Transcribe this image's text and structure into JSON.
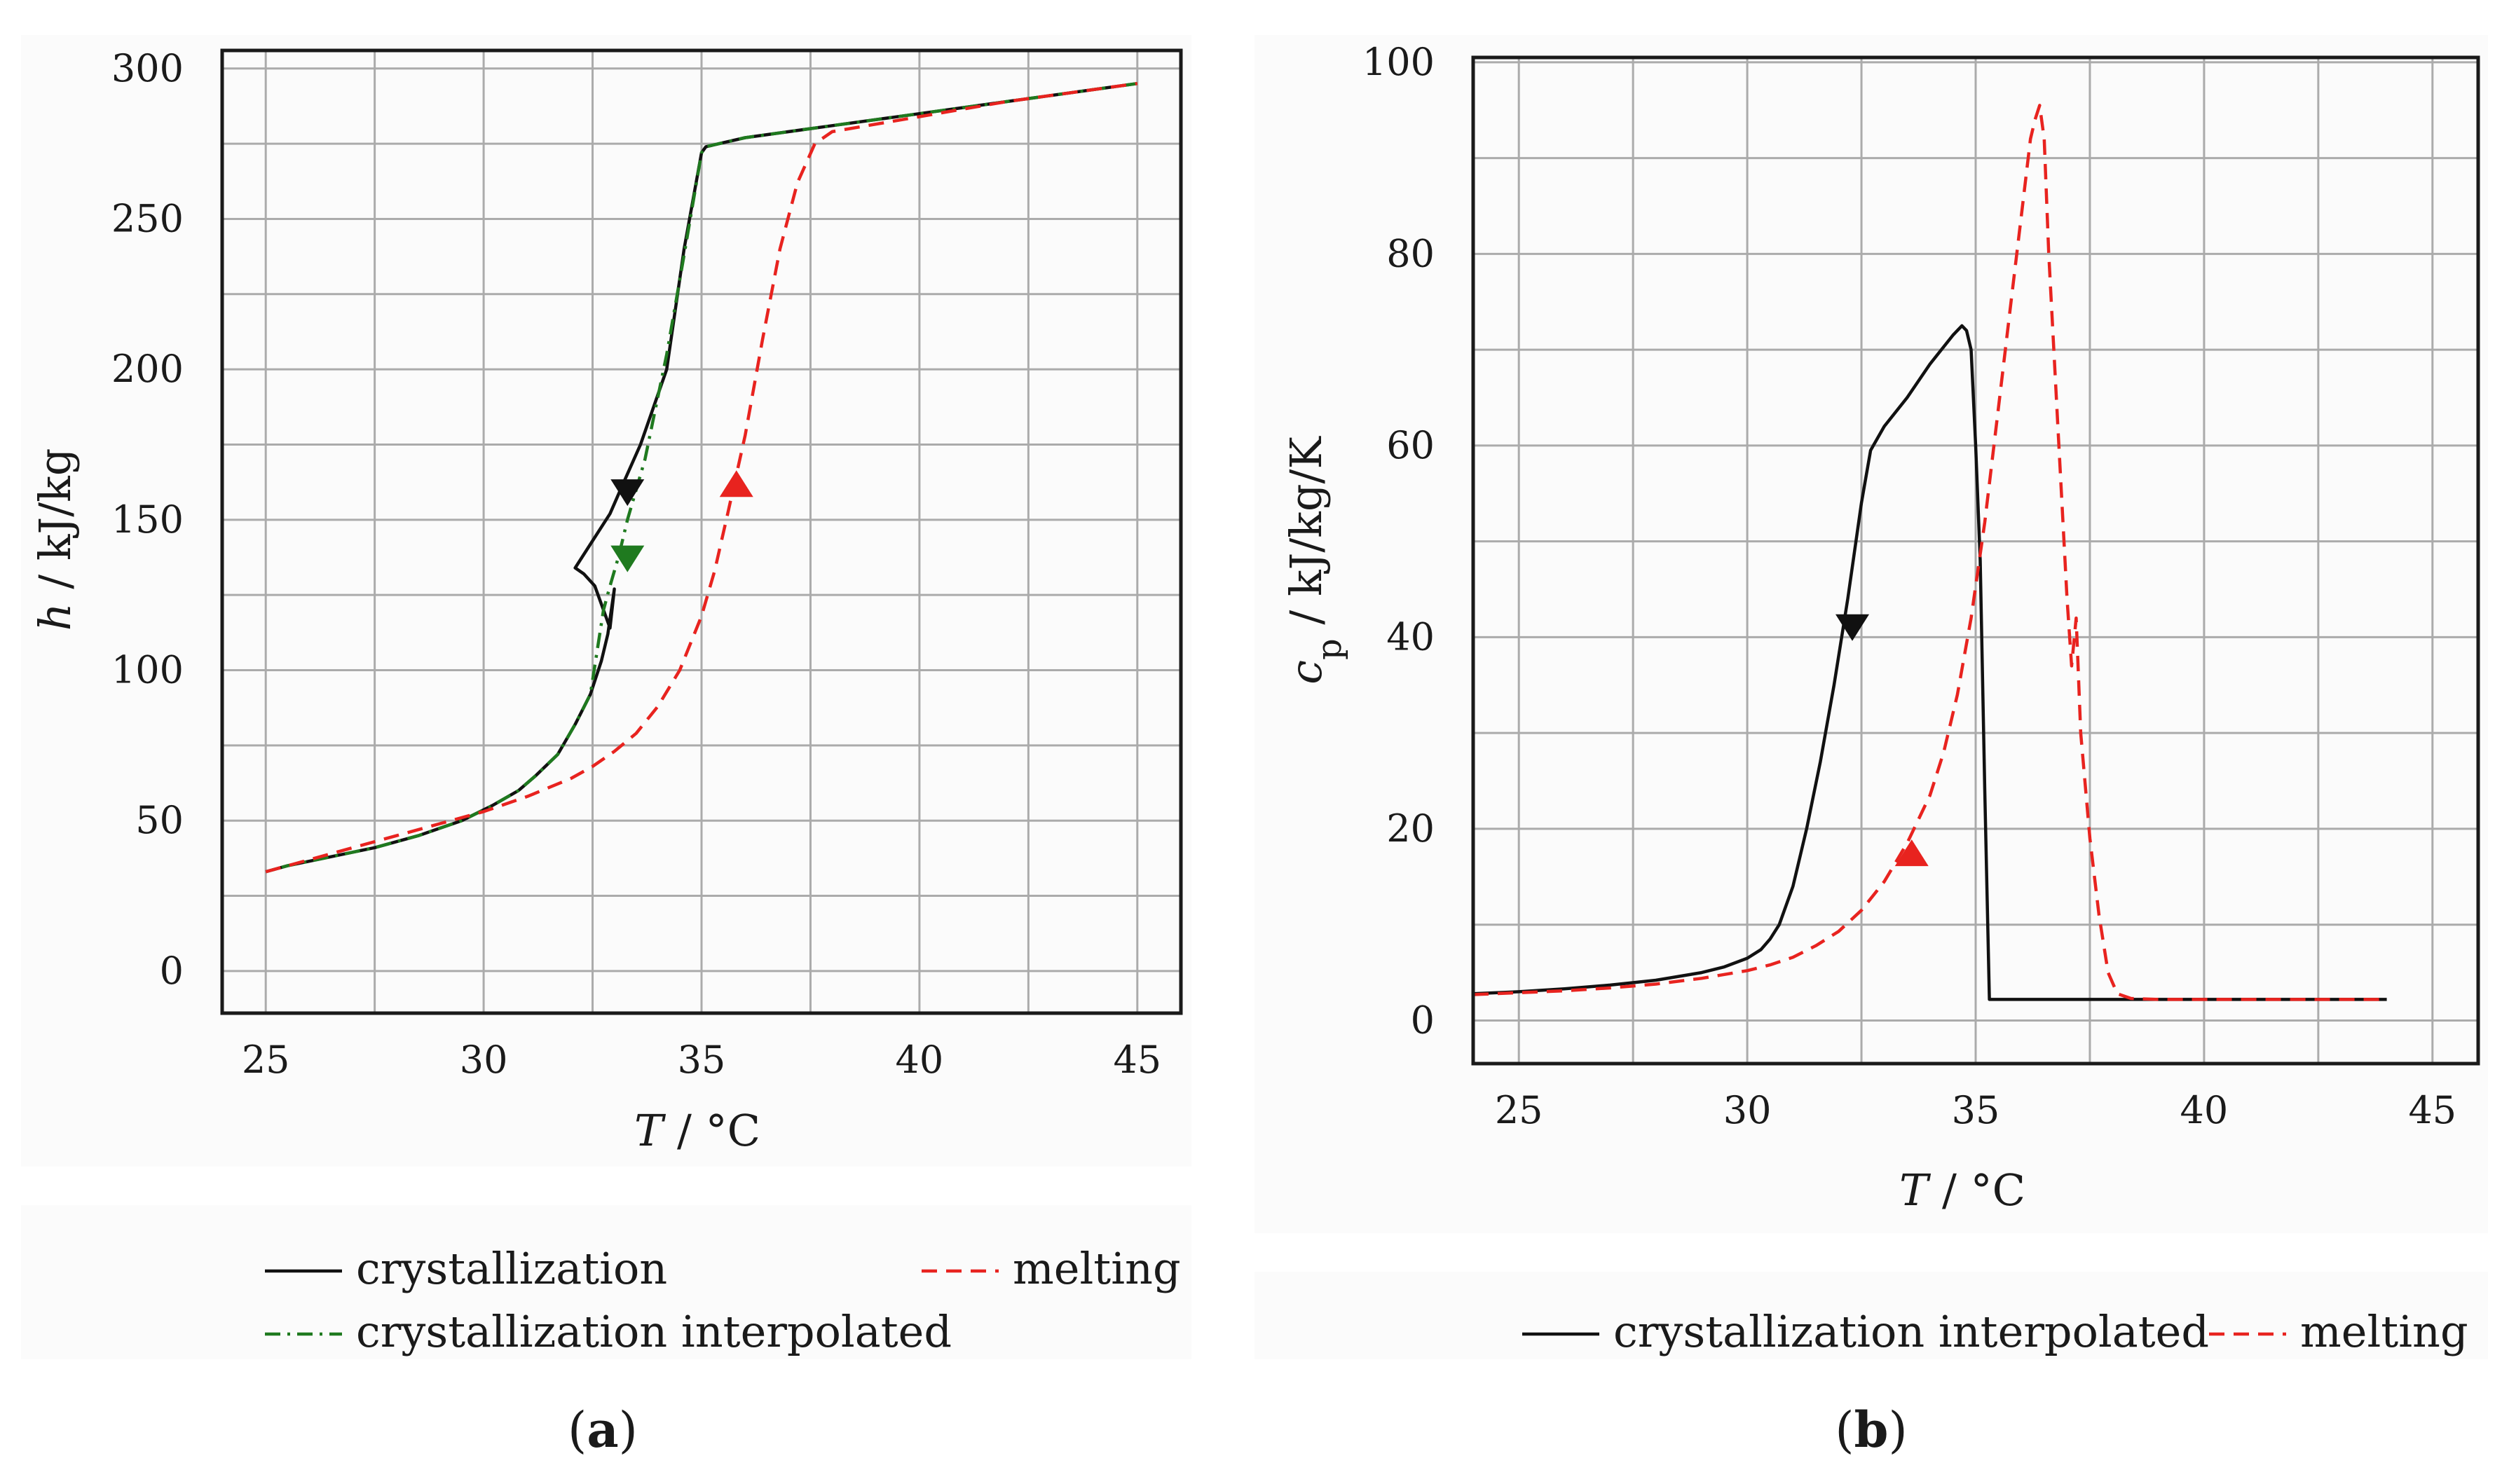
{
  "figure": {
    "panel_a_label": "a",
    "panel_b_label": "b",
    "paren_open": "(",
    "paren_close": ")"
  },
  "chart_data": [
    {
      "type": "line",
      "id": "a",
      "title": "",
      "xlabel_var": "T",
      "xlabel_unit": " / °C",
      "ylabel_var": "h",
      "ylabel_unit": " / kJ/kg",
      "xlim": [
        24,
        46
      ],
      "ylim": [
        -14,
        306
      ],
      "xticks": [
        25,
        30,
        35,
        40,
        45
      ],
      "yticks": [
        0,
        50,
        100,
        150,
        200,
        250,
        300
      ],
      "xgrid": [
        25,
        27.5,
        30,
        32.5,
        35,
        37.5,
        40,
        42.5,
        45
      ],
      "ygrid": [
        0,
        25,
        50,
        75,
        100,
        125,
        150,
        175,
        200,
        225,
        250,
        275,
        300
      ],
      "grid": true,
      "legend_position": "bottom",
      "series": [
        {
          "name": "crystallization",
          "color": "#111111",
          "dash": "solid",
          "x": [
            45,
            42,
            40,
            38,
            36,
            35.4,
            35.1,
            35.0,
            34.6,
            34.2,
            33.6,
            33.2,
            32.9,
            32.5,
            32.1,
            32.3,
            32.55,
            32.75,
            32.9,
            33.0,
            32.85,
            32.7,
            32.45,
            32.1,
            31.7,
            31.2,
            30.8,
            30.2,
            29.5,
            28.5,
            27.5,
            26.5,
            25.5,
            25
          ],
          "y": [
            295,
            289,
            285,
            281,
            277,
            275,
            274,
            272,
            240,
            200,
            175,
            162,
            152,
            143,
            134,
            132,
            128,
            120,
            114,
            127,
            112,
            103,
            92,
            82,
            72,
            65,
            60,
            55,
            50,
            45,
            41,
            38,
            35,
            33
          ]
        },
        {
          "name": "crystallization interpolated",
          "color": "#1f7a1f",
          "dash": "dashdot",
          "x": [
            45,
            42,
            40,
            38,
            36,
            35.4,
            35.1,
            35.0,
            34.6,
            34.2,
            33.7,
            33.3,
            33.1,
            32.9,
            32.75,
            32.45,
            32.1,
            31.7,
            31.2,
            30.8,
            30.2,
            29.5,
            28.5,
            27.5,
            26.5,
            25.5,
            25
          ],
          "y": [
            295,
            289,
            285,
            281,
            277,
            275,
            274,
            272,
            238,
            205,
            170,
            150,
            138,
            128,
            120,
            92,
            82,
            72,
            65,
            60,
            55,
            50,
            45,
            41,
            38,
            35,
            33
          ]
        },
        {
          "name": "melting",
          "color": "#e8231f",
          "dash": "dashed",
          "x": [
            25,
            26,
            27,
            28,
            29,
            30,
            31,
            32,
            32.5,
            33,
            33.5,
            34,
            34.5,
            35,
            35.3,
            35.6,
            36,
            36.4,
            36.8,
            37.2,
            37.6,
            38,
            40,
            42,
            45
          ],
          "y": [
            33,
            37,
            41,
            45,
            49,
            53,
            58,
            64,
            68,
            73,
            79,
            88,
            100,
            118,
            133,
            152,
            178,
            210,
            240,
            262,
            275,
            279,
            284,
            289,
            295
          ]
        }
      ],
      "markers": [
        {
          "color": "#111111",
          "x": 33.3,
          "y": 159,
          "direction": "down"
        },
        {
          "color": "#1f7a1f",
          "x": 33.3,
          "y": 137,
          "direction": "down"
        },
        {
          "color": "#e8231f",
          "x": 35.8,
          "y": 162,
          "direction": "up"
        }
      ],
      "legend": [
        {
          "name": "crystallization",
          "color": "#111111",
          "dash": "solid"
        },
        {
          "name": "melting",
          "color": "#e8231f",
          "dash": "dashed"
        },
        {
          "name": "crystallization interpolated",
          "color": "#1f7a1f",
          "dash": "dashdot"
        }
      ]
    },
    {
      "type": "line",
      "id": "b",
      "title": "",
      "xlabel_var": "T",
      "xlabel_unit": " / °C",
      "ylabel_var": "c",
      "ylabel_sub": "p",
      "ylabel_unit": " / kJ/kg/K",
      "xlim": [
        24,
        46
      ],
      "ylim": [
        -4.5,
        100.5
      ],
      "xticks": [
        25,
        30,
        35,
        40,
        45
      ],
      "yticks": [
        0,
        20,
        40,
        60,
        80,
        100
      ],
      "xgrid": [
        25,
        27.5,
        30,
        32.5,
        35,
        37.5,
        40,
        42.5,
        45
      ],
      "ygrid": [
        0,
        10,
        20,
        30,
        40,
        50,
        60,
        70,
        80,
        90,
        100
      ],
      "grid": true,
      "legend_position": "bottom",
      "series": [
        {
          "name": "crystallization interpolated",
          "color": "#111111",
          "dash": "solid",
          "x": [
            24,
            25,
            26,
            27,
            28,
            29,
            29.5,
            30,
            30.3,
            30.5,
            30.7,
            31,
            31.3,
            31.6,
            31.9,
            32.2,
            32.5,
            32.7,
            33,
            33.5,
            34,
            34.5,
            34.7,
            34.8,
            34.9,
            35.0,
            35.1,
            35.2,
            35.3,
            35.5,
            37,
            40,
            44
          ],
          "y": [
            2.8,
            3.0,
            3.3,
            3.7,
            4.2,
            5.0,
            5.6,
            6.5,
            7.4,
            8.5,
            10,
            14,
            20,
            27,
            35,
            44,
            54,
            59.5,
            62,
            65,
            68.5,
            71.5,
            72.5,
            72,
            70,
            60,
            48,
            24,
            2.2,
            2.2,
            2.2,
            2.2,
            2.2
          ]
        },
        {
          "name": "melting",
          "color": "#e8231f",
          "dash": "dashed",
          "x": [
            24,
            25,
            26,
            27,
            28,
            29,
            30,
            30.5,
            31,
            31.5,
            32,
            32.5,
            33,
            33.5,
            34,
            34.3,
            34.6,
            34.9,
            35.2,
            35.5,
            35.8,
            36.0,
            36.1,
            36.2,
            36.3,
            36.4,
            36.5,
            36.6,
            36.8,
            37.0,
            37.1,
            37.2,
            37.3,
            37.5,
            37.7,
            37.9,
            38.1,
            38.4,
            39,
            40,
            42,
            44
          ],
          "y": [
            2.7,
            2.9,
            3.1,
            3.4,
            3.8,
            4.4,
            5.2,
            5.8,
            6.6,
            7.8,
            9.3,
            11.5,
            14.5,
            18.5,
            23.5,
            28,
            34,
            42,
            52,
            64,
            76,
            84,
            88,
            92,
            94,
            95.5,
            92,
            80,
            62,
            44,
            37,
            42,
            30,
            19,
            11,
            5,
            2.8,
            2.3,
            2.2,
            2.2,
            2.2,
            2.2
          ]
        }
      ],
      "markers": [
        {
          "color": "#111111",
          "x": 32.3,
          "y": 41,
          "direction": "down"
        },
        {
          "color": "#e8231f",
          "x": 33.6,
          "y": 17.5,
          "direction": "up"
        }
      ],
      "legend": [
        {
          "name": "crystallization interpolated",
          "color": "#111111",
          "dash": "solid"
        },
        {
          "name": "melting",
          "color": "#e8231f",
          "dash": "dashed"
        }
      ]
    }
  ]
}
